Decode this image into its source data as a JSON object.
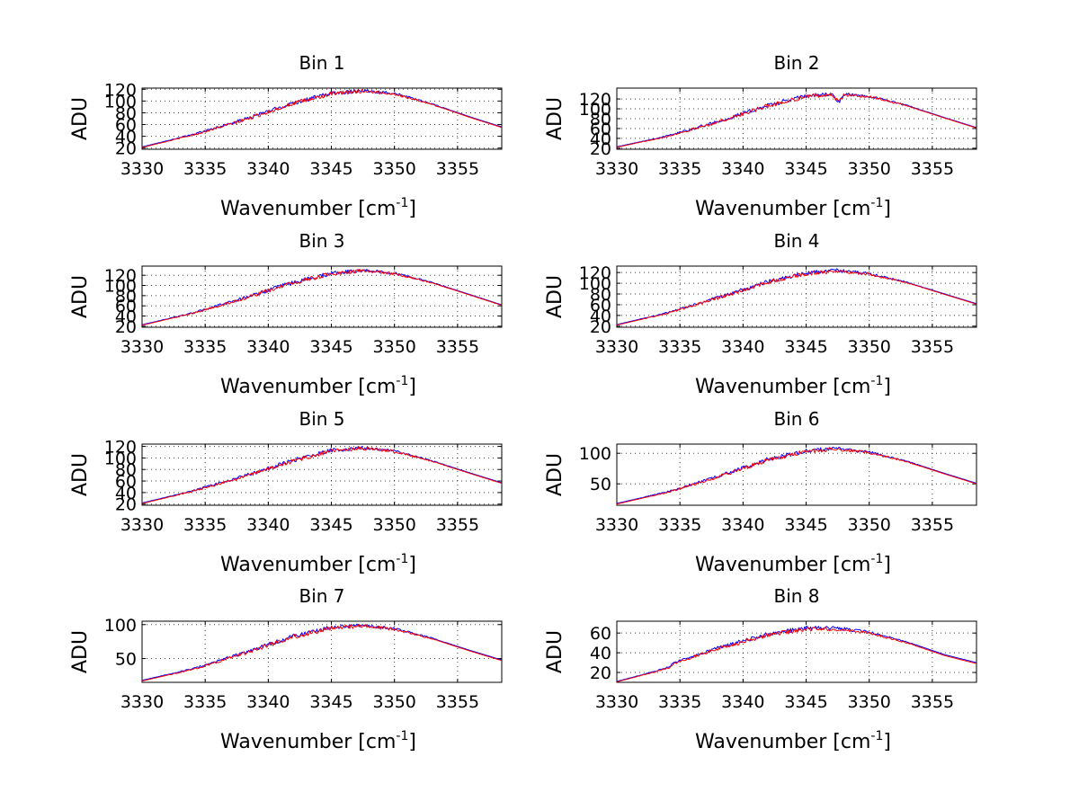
{
  "figure": {
    "background": "#ffffff"
  },
  "chart_data": [
    {
      "type": "line",
      "title": "Bin 1",
      "xlabel": "Wavenumber [cm",
      "xlabel_sup": "-1",
      "xlabel_end": "]",
      "ylabel": "ADU",
      "xlim": [
        3330,
        3358.5
      ],
      "ylim": [
        18,
        122
      ],
      "xticks": [
        3330,
        3335,
        3340,
        3345,
        3350,
        3355
      ],
      "yticks": [
        20,
        40,
        60,
        80,
        100,
        120
      ],
      "ytick_labels": [
        "20",
        "40",
        "60",
        "80",
        "100",
        "120"
      ],
      "grid": true,
      "series": [
        {
          "color": "#0000ff",
          "x": [
            3330,
            3334,
            3338,
            3342,
            3345,
            3347.5,
            3350,
            3353,
            3356,
            3358.5
          ],
          "y": [
            22,
            43,
            68,
            97,
            113,
            118,
            113,
            95,
            73,
            56
          ]
        },
        {
          "color": "#ff0000",
          "x": [
            3330,
            3334,
            3338,
            3342,
            3345,
            3347.5,
            3350,
            3353,
            3356,
            3358.5
          ],
          "y": [
            21,
            42,
            67,
            96,
            112,
            117,
            112,
            94,
            72,
            55
          ]
        }
      ]
    },
    {
      "type": "line",
      "title": "Bin 2",
      "xlabel": "Wavenumber [cm",
      "xlabel_sup": "-1",
      "xlabel_end": "]",
      "ylabel": "ADU",
      "xlim": [
        3330,
        3358.5
      ],
      "ylim": [
        18,
        142
      ],
      "xticks": [
        3330,
        3335,
        3340,
        3345,
        3350,
        3355
      ],
      "yticks": [
        20,
        40,
        60,
        80,
        100,
        120
      ],
      "ytick_labels": [
        "20",
        "40",
        "60",
        "80",
        "100",
        "120"
      ],
      "grid": true,
      "series": [
        {
          "color": "#0000ff",
          "x": [
            3330,
            3334,
            3338,
            3342,
            3345,
            3347,
            3347.6,
            3348,
            3350,
            3353,
            3356,
            3358.5
          ],
          "y": [
            23,
            45,
            74,
            107,
            126,
            130,
            112,
            129,
            126,
            107,
            82,
            62
          ]
        },
        {
          "color": "#ff0000",
          "x": [
            3330,
            3334,
            3338,
            3342,
            3345,
            3347,
            3347.6,
            3348,
            3350,
            3353,
            3356,
            3358.5
          ],
          "y": [
            22,
            44,
            73,
            106,
            125,
            129,
            114,
            128,
            125,
            106,
            81,
            61
          ]
        }
      ]
    },
    {
      "type": "line",
      "title": "Bin 3",
      "xlabel": "Wavenumber [cm",
      "xlabel_sup": "-1",
      "xlabel_end": "]",
      "ylabel": "ADU",
      "xlim": [
        3330,
        3358.5
      ],
      "ylim": [
        18,
        138
      ],
      "xticks": [
        3330,
        3335,
        3340,
        3345,
        3350,
        3355
      ],
      "yticks": [
        20,
        40,
        60,
        80,
        100,
        120
      ],
      "ytick_labels": [
        "20",
        "40",
        "60",
        "80",
        "100",
        "120"
      ],
      "grid": true,
      "series": [
        {
          "color": "#0000ff",
          "x": [
            3330,
            3334,
            3338,
            3342,
            3345,
            3347.5,
            3350,
            3353,
            3356,
            3358.5
          ],
          "y": [
            23,
            46,
            75,
            106,
            124,
            130,
            124,
            106,
            82,
            62
          ]
        },
        {
          "color": "#ff0000",
          "x": [
            3330,
            3334,
            3338,
            3342,
            3345,
            3347.5,
            3350,
            3353,
            3356,
            3358.5
          ],
          "y": [
            22,
            45,
            74,
            105,
            123,
            129,
            123,
            105,
            81,
            61
          ]
        }
      ]
    },
    {
      "type": "line",
      "title": "Bin 4",
      "xlabel": "Wavenumber [cm",
      "xlabel_sup": "-1",
      "xlabel_end": "]",
      "ylabel": "ADU",
      "xlim": [
        3330,
        3358.5
      ],
      "ylim": [
        18,
        132
      ],
      "xticks": [
        3330,
        3335,
        3340,
        3345,
        3350,
        3355
      ],
      "yticks": [
        20,
        40,
        60,
        80,
        100,
        120
      ],
      "ytick_labels": [
        "20",
        "40",
        "60",
        "80",
        "100",
        "120"
      ],
      "grid": true,
      "series": [
        {
          "color": "#0000ff",
          "x": [
            3330,
            3334,
            3338,
            3342,
            3345,
            3347.5,
            3350,
            3353,
            3356,
            3358.5
          ],
          "y": [
            23,
            45,
            73,
            103,
            119,
            124,
            118,
            102,
            80,
            62
          ]
        },
        {
          "color": "#ff0000",
          "x": [
            3330,
            3334,
            3338,
            3342,
            3345,
            3347.5,
            3350,
            3353,
            3356,
            3358.5
          ],
          "y": [
            22,
            44,
            72,
            102,
            118,
            123,
            117,
            101,
            79,
            61
          ]
        }
      ]
    },
    {
      "type": "line",
      "title": "Bin 5",
      "xlabel": "Wavenumber [cm",
      "xlabel_sup": "-1",
      "xlabel_end": "]",
      "ylabel": "ADU",
      "xlim": [
        3330,
        3358.5
      ],
      "ylim": [
        18,
        124
      ],
      "xticks": [
        3330,
        3335,
        3340,
        3345,
        3350,
        3355
      ],
      "yticks": [
        20,
        40,
        60,
        80,
        100,
        120
      ],
      "ytick_labels": [
        "20",
        "40",
        "60",
        "80",
        "100",
        "120"
      ],
      "grid": true,
      "series": [
        {
          "color": "#0000ff",
          "x": [
            3330,
            3334,
            3338,
            3342,
            3345,
            3347.5,
            3350,
            3353,
            3356,
            3358.5
          ],
          "y": [
            22,
            43,
            68,
            96,
            113,
            118,
            112,
            95,
            74,
            57
          ]
        },
        {
          "color": "#ff0000",
          "x": [
            3330,
            3334,
            3338,
            3342,
            3345,
            3347.5,
            3350,
            3353,
            3356,
            3358.5
          ],
          "y": [
            21,
            42,
            67,
            95,
            112,
            117,
            111,
            94,
            73,
            56
          ]
        }
      ]
    },
    {
      "type": "line",
      "title": "Bin 6",
      "xlabel": "Wavenumber [cm",
      "xlabel_sup": "-1",
      "xlabel_end": "]",
      "ylabel": "ADU",
      "xlim": [
        3330,
        3358.5
      ],
      "ylim": [
        15,
        115
      ],
      "xticks": [
        3330,
        3335,
        3340,
        3345,
        3350,
        3355
      ],
      "yticks": [
        50,
        100
      ],
      "ytick_labels": [
        "50",
        "100"
      ],
      "grid": true,
      "series": [
        {
          "color": "#0000ff",
          "x": [
            3330,
            3334,
            3338,
            3342,
            3345,
            3347.5,
            3350,
            3353,
            3356,
            3358.5
          ],
          "y": [
            18,
            37,
            62,
            90,
            104,
            108,
            102,
            87,
            67,
            51
          ]
        },
        {
          "color": "#ff0000",
          "x": [
            3330,
            3334,
            3338,
            3342,
            3345,
            3347.5,
            3350,
            3353,
            3356,
            3358.5
          ],
          "y": [
            17,
            36,
            61,
            89,
            103,
            107,
            101,
            86,
            66,
            50
          ]
        }
      ]
    },
    {
      "type": "line",
      "title": "Bin 7",
      "xlabel": "Wavenumber [cm",
      "xlabel_sup": "-1",
      "xlabel_end": "]",
      "ylabel": "ADU",
      "xlim": [
        3330,
        3358.5
      ],
      "ylim": [
        15,
        105
      ],
      "xticks": [
        3330,
        3335,
        3340,
        3345,
        3350,
        3355
      ],
      "yticks": [
        50,
        100
      ],
      "ytick_labels": [
        "50",
        "100"
      ],
      "grid": true,
      "series": [
        {
          "color": "#0000ff",
          "x": [
            3330,
            3334,
            3338,
            3342,
            3345,
            3347.5,
            3350,
            3353,
            3356,
            3358.5
          ],
          "y": [
            18,
            35,
            58,
            83,
            96,
            99,
            94,
            80,
            62,
            48
          ]
        },
        {
          "color": "#ff0000",
          "x": [
            3330,
            3334,
            3338,
            3342,
            3345,
            3347.5,
            3350,
            3353,
            3356,
            3358.5
          ],
          "y": [
            17,
            34,
            57,
            82,
            95,
            98,
            93,
            79,
            61,
            47
          ]
        }
      ]
    },
    {
      "type": "line",
      "title": "Bin 8",
      "xlabel": "Wavenumber [cm",
      "xlabel_sup": "-1",
      "xlabel_end": "]",
      "ylabel": "ADU",
      "xlim": [
        3330,
        3358.5
      ],
      "ylim": [
        10,
        72
      ],
      "xticks": [
        3330,
        3335,
        3340,
        3345,
        3350,
        3355
      ],
      "yticks": [
        20,
        40,
        60
      ],
      "ytick_labels": [
        "20",
        "40",
        "60"
      ],
      "grid": true,
      "series": [
        {
          "color": "#0000ff",
          "x": [
            3330,
            3333,
            3334.2,
            3334.5,
            3338,
            3342,
            3345,
            3347.5,
            3350,
            3353,
            3356,
            3358.5
          ],
          "y": [
            11,
            21,
            26,
            30,
            45,
            59,
            65,
            65,
            61,
            51,
            38,
            30
          ]
        },
        {
          "color": "#ff0000",
          "x": [
            3330,
            3333,
            3334.2,
            3334.5,
            3338,
            3342,
            3345,
            3347.5,
            3350,
            3353,
            3356,
            3358.5
          ],
          "y": [
            10.5,
            20.5,
            25,
            29,
            44,
            58,
            64,
            64,
            60,
            50,
            37,
            29
          ]
        }
      ]
    }
  ]
}
